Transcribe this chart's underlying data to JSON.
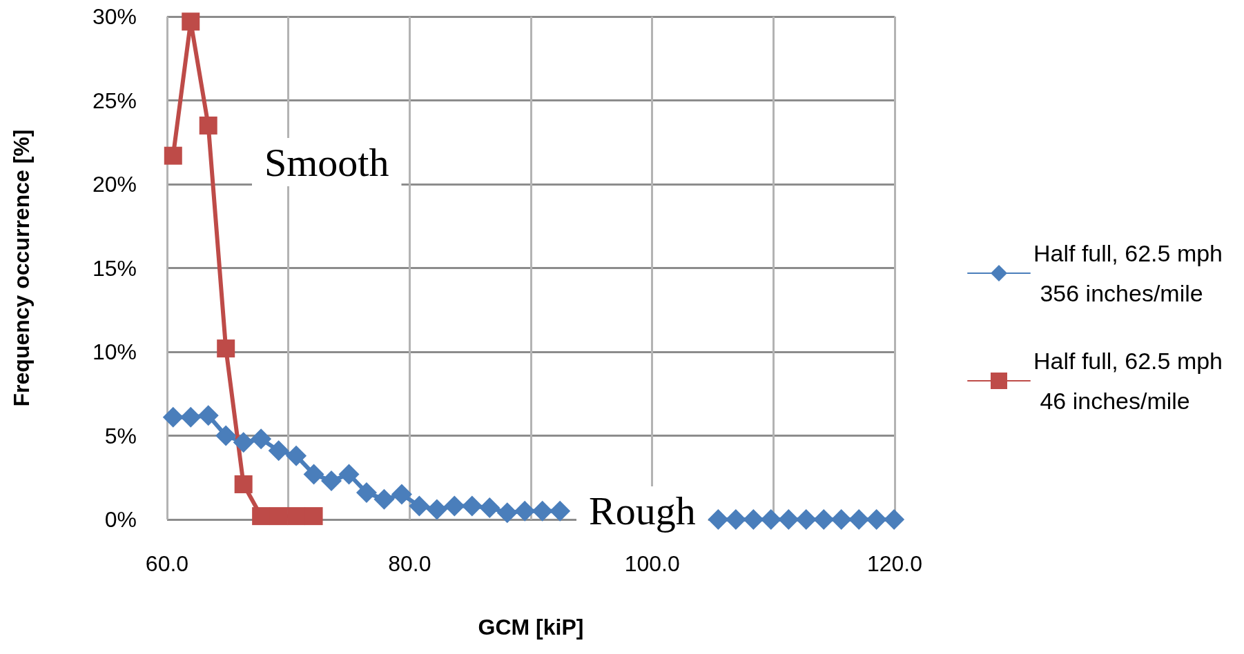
{
  "chart_data": {
    "type": "line",
    "xlabel": "GCM [kiP]",
    "ylabel": "Frequency occurrence [%]",
    "xlim": [
      60,
      120
    ],
    "xticks": [
      {
        "value": 60,
        "label": "60.0"
      },
      {
        "value": 70,
        "label": null
      },
      {
        "value": 80,
        "label": "80.0"
      },
      {
        "value": 90,
        "label": null
      },
      {
        "value": 100,
        "label": "100.0"
      },
      {
        "value": 110,
        "label": null
      },
      {
        "value": 120,
        "label": "120.0"
      }
    ],
    "ylim": [
      0,
      30
    ],
    "yticks": [
      {
        "value": 0,
        "label": "0%"
      },
      {
        "value": 5,
        "label": "5%"
      },
      {
        "value": 10,
        "label": "10%"
      },
      {
        "value": 15,
        "label": "15%"
      },
      {
        "value": 20,
        "label": "20%"
      },
      {
        "value": 25,
        "label": "25%"
      },
      {
        "value": 30,
        "label": "30%"
      }
    ],
    "grid": true,
    "legend": "right",
    "line_style": "solid",
    "annotations": [
      "Smooth",
      "Rough"
    ],
    "series": [
      {
        "name": "Half full, 62.5 mph 356 inches/mile",
        "color": "#4a7ebb",
        "marker": "diamond",
        "x": [
          60.5,
          61.95,
          63.4,
          64.85,
          66.3,
          67.75,
          69.2,
          70.65,
          72.1,
          73.55,
          75.0,
          76.45,
          77.9,
          79.35,
          80.8,
          82.25,
          83.7,
          85.15,
          86.6,
          88.05,
          89.5,
          90.95,
          92.4,
          93.85,
          95.3,
          96.75,
          98.2,
          99.65,
          101.1,
          102.55,
          104.0,
          105.45,
          106.9,
          108.35,
          109.8,
          111.25,
          112.7,
          114.15,
          115.6,
          117.05,
          118.5,
          119.95
        ],
        "values": [
          6.1,
          6.1,
          6.2,
          5.0,
          4.6,
          4.8,
          4.1,
          3.8,
          2.7,
          2.3,
          2.7,
          1.6,
          1.2,
          1.5,
          0.8,
          0.6,
          0.8,
          0.8,
          0.7,
          0.4,
          0.5,
          0.5,
          0.5,
          null,
          null,
          null,
          null,
          null,
          null,
          null,
          null,
          0,
          0,
          0,
          0,
          0,
          0,
          0,
          0,
          0,
          0,
          0
        ]
      },
      {
        "name": "Half full, 62.5 mph 46 inches/mile",
        "color": "#be4b48",
        "marker": "square",
        "x": [
          60.5,
          61.95,
          63.4,
          64.85,
          66.3,
          67.75,
          69.2,
          70.65,
          72.1
        ],
        "values": [
          21.7,
          29.7,
          23.5,
          10.2,
          2.1,
          0.2,
          0.2,
          0.2,
          0.2
        ]
      }
    ]
  }
}
